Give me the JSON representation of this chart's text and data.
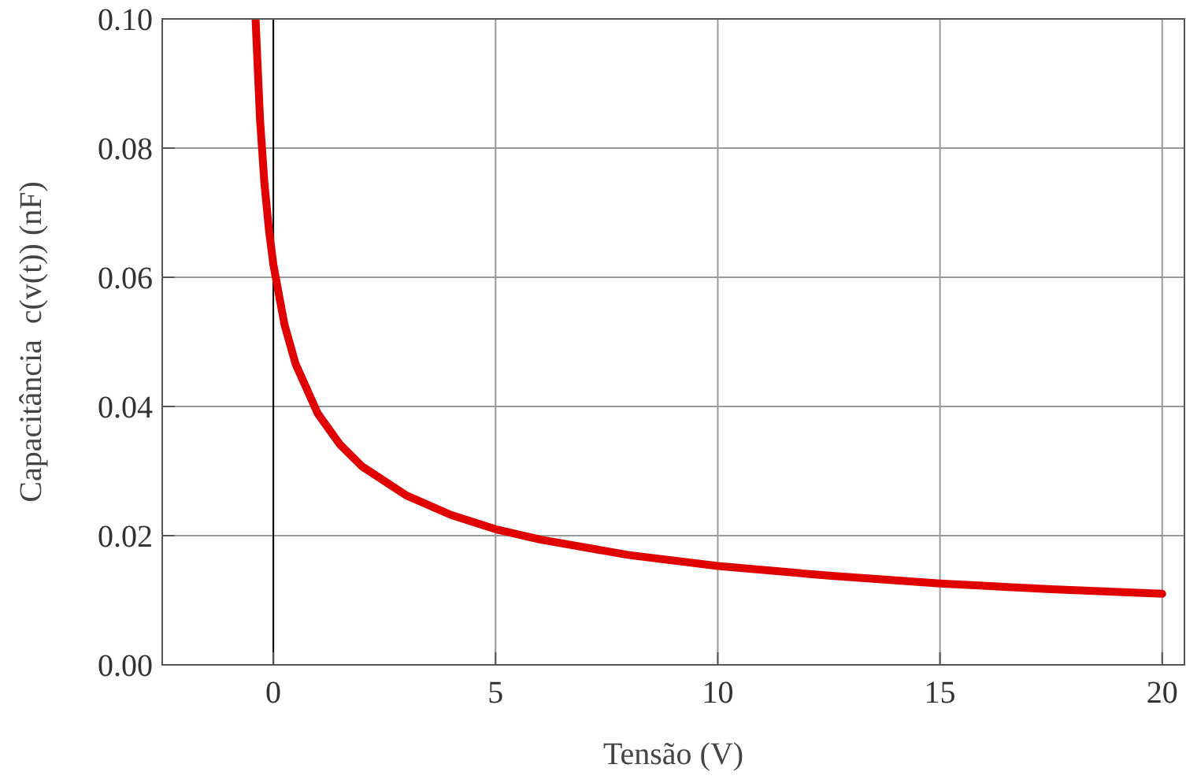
{
  "chart_data": {
    "type": "line",
    "xlabel": "Tensão (V)",
    "ylabel": "Capacitância  c(v(t)) (nF)",
    "x": [
      -0.4,
      -0.3,
      -0.2,
      -0.1,
      0,
      0.25,
      0.5,
      1,
      1.5,
      2,
      3,
      4,
      5,
      6,
      8,
      10,
      12.5,
      15,
      17.5,
      20
    ],
    "series": [
      {
        "color": "#e00000",
        "values": [
          0.1,
          0.0845,
          0.0745,
          0.0674,
          0.062,
          0.0527,
          0.0466,
          0.0389,
          0.0341,
          0.0307,
          0.0262,
          0.0232,
          0.021,
          0.0194,
          0.017,
          0.0153,
          0.0138,
          0.0126,
          0.0117,
          0.011
        ]
      }
    ],
    "xlim": [
      -2.5,
      20.5
    ],
    "xticks": [
      0,
      5,
      10,
      15,
      20
    ],
    "ylim": [
      0,
      0.1
    ],
    "yticks": [
      {
        "value": 0,
        "label": "0.00"
      },
      {
        "value": 0.02,
        "label": "0.02"
      },
      {
        "value": 0.04,
        "label": "0.04"
      },
      {
        "value": 0.06,
        "label": "0.06"
      },
      {
        "value": 0.08,
        "label": "0.08"
      },
      {
        "value": 0.1,
        "label": "0.10"
      }
    ],
    "grid": true,
    "ref_lines": [
      {
        "axis": "x",
        "value": 0,
        "color": "#000000"
      }
    ],
    "line_style": "solid",
    "marker": "none"
  }
}
